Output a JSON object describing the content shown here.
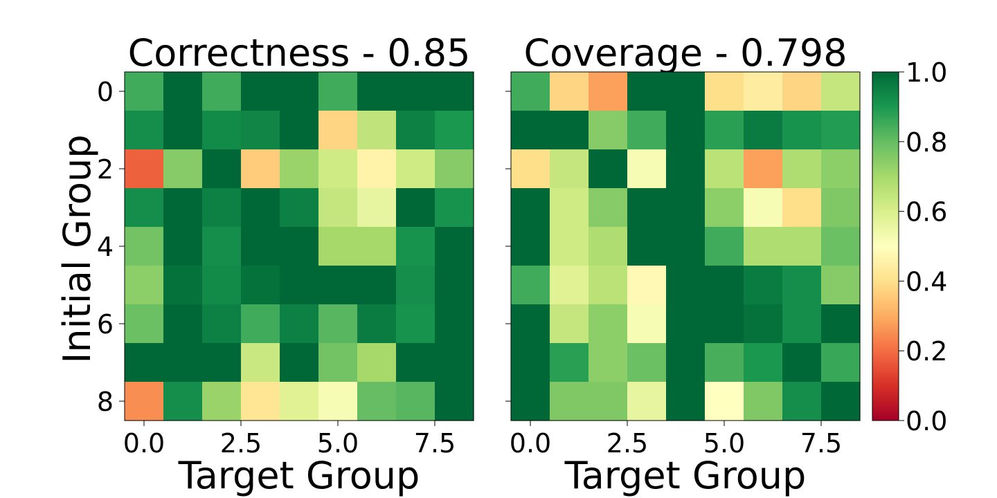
{
  "chart_data": [
    {
      "type": "heatmap",
      "title": "Correctness - 0.85",
      "xlabel": "Target Group",
      "ylabel": "Initial Group",
      "x_ticks": [
        "0.0",
        "2.5",
        "5.0",
        "7.5"
      ],
      "y_ticks": [
        "0",
        "2",
        "4",
        "6",
        "8"
      ],
      "rows": [
        0,
        1,
        2,
        3,
        4,
        5,
        6,
        7,
        8
      ],
      "cols": [
        0,
        1,
        2,
        3,
        4,
        5,
        6,
        7,
        8
      ],
      "values": [
        [
          0.85,
          1.0,
          0.85,
          1.0,
          1.0,
          0.85,
          1.0,
          1.0,
          1.0
        ],
        [
          0.92,
          1.0,
          0.93,
          0.94,
          1.0,
          0.38,
          0.65,
          0.95,
          0.9
        ],
        [
          0.18,
          0.75,
          1.0,
          0.36,
          0.72,
          0.62,
          0.46,
          0.62,
          0.75
        ],
        [
          0.92,
          1.0,
          0.95,
          1.0,
          0.95,
          0.64,
          0.56,
          1.0,
          0.91
        ],
        [
          0.78,
          1.0,
          0.92,
          1.0,
          1.0,
          0.7,
          0.7,
          0.91,
          1.0
        ],
        [
          0.74,
          0.98,
          0.93,
          0.98,
          1.0,
          1.0,
          1.0,
          0.92,
          1.0
        ],
        [
          0.79,
          1.0,
          0.95,
          0.85,
          0.95,
          0.82,
          0.96,
          0.91,
          1.0
        ],
        [
          1.0,
          1.0,
          1.0,
          0.63,
          1.0,
          0.78,
          0.7,
          1.0,
          1.0
        ],
        [
          0.25,
          0.92,
          0.72,
          0.42,
          0.58,
          0.52,
          0.8,
          0.82,
          1.0
        ]
      ]
    },
    {
      "type": "heatmap",
      "title": "Coverage - 0.798",
      "xlabel": "Target Group",
      "ylabel": "",
      "x_ticks": [
        "0.0",
        "2.5",
        "5.0",
        "7.5"
      ],
      "y_ticks": [
        "0",
        "2",
        "4",
        "6",
        "8"
      ],
      "y_ticklabels_visible": false,
      "rows": [
        0,
        1,
        2,
        3,
        4,
        5,
        6,
        7,
        8
      ],
      "cols": [
        0,
        1,
        2,
        3,
        4,
        5,
        6,
        7,
        8
      ],
      "values": [
        [
          0.85,
          0.38,
          0.28,
          1.0,
          1.0,
          0.4,
          0.44,
          0.38,
          0.64
        ],
        [
          1.0,
          1.0,
          0.75,
          0.85,
          1.0,
          0.88,
          0.96,
          0.91,
          0.89
        ],
        [
          0.4,
          0.64,
          1.0,
          0.52,
          1.0,
          0.66,
          0.28,
          0.68,
          0.74
        ],
        [
          1.0,
          0.62,
          0.75,
          1.0,
          1.0,
          0.74,
          0.52,
          0.4,
          0.76
        ],
        [
          1.0,
          0.62,
          0.68,
          1.0,
          1.0,
          0.85,
          0.68,
          0.68,
          0.79
        ],
        [
          0.85,
          0.58,
          0.66,
          0.48,
          1.0,
          1.0,
          0.96,
          0.92,
          0.75
        ],
        [
          1.0,
          0.64,
          0.74,
          0.52,
          1.0,
          1.0,
          0.98,
          0.92,
          1.0
        ],
        [
          1.0,
          0.88,
          0.74,
          0.79,
          1.0,
          0.84,
          0.9,
          1.0,
          0.86
        ],
        [
          1.0,
          0.76,
          0.76,
          0.56,
          1.0,
          0.5,
          0.76,
          0.92,
          1.0
        ]
      ]
    }
  ],
  "colorbar": {
    "colormap": "RdYlGn",
    "vmin": 0.0,
    "vmax": 1.0,
    "ticks": [
      "0.0",
      "0.2",
      "0.4",
      "0.6",
      "0.8",
      "1.0"
    ]
  }
}
